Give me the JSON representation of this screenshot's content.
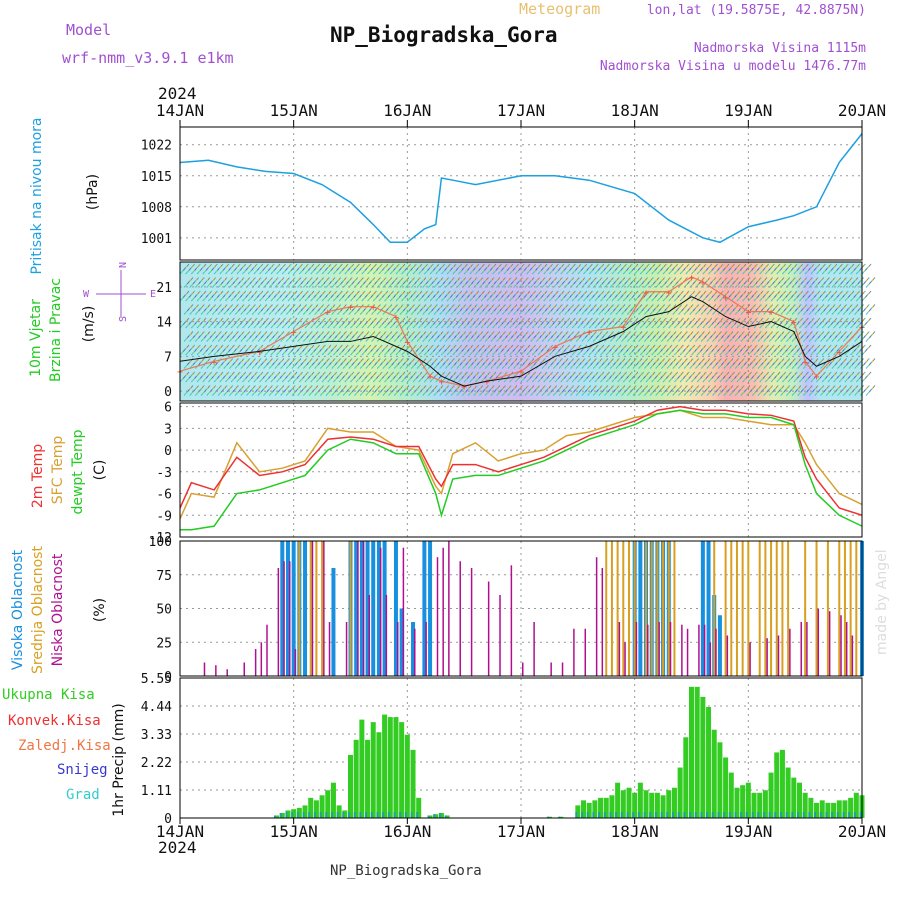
{
  "header": {
    "model_label": "Model",
    "model_name": "wrf-nmm_v3.9.1 e1km",
    "meteogram_label": "Meteogram",
    "station_title": "NP_Biogradska_Gora",
    "lonlat": "lon,lat (19.5875E, 42.8875N)",
    "elevation": "Nadmorska Visina 1115m",
    "model_elevation": "Nadmorska Visina u modelu 1476.77m",
    "footer_station": "NP_Biogradska_Gora",
    "credit": "made by Angel",
    "year": "2024"
  },
  "x_axis": {
    "ticks": [
      "14JAN",
      "15JAN",
      "16JAN",
      "17JAN",
      "18JAN",
      "19JAN",
      "20JAN"
    ],
    "range_days": [
      0,
      6
    ]
  },
  "panel_labels": {
    "pressure": {
      "name": "Pritisak na nivou mora",
      "unit": "(hPa)"
    },
    "wind": {
      "name1": "10m Vjetar",
      "name2": "Brzina i Pravac",
      "unit": "(m/s)",
      "compass_n": "N",
      "compass_s": "S",
      "compass_w": "W",
      "compass_e": "E"
    },
    "temp": {
      "t2m": "2m Temp",
      "sfc": "SFC Temp",
      "dew": "dewpt Temp",
      "unit": "(C)"
    },
    "cloud": {
      "high": "Visoka Oblacnost",
      "mid": "Srednja Oblacnost",
      "low": "Niska Oblacnost",
      "unit": "(%)"
    },
    "precip": {
      "total": "Ukupna Kisa",
      "conv": "Konvek.Kisa",
      "frz": "Zaledj.Kisa",
      "snow": "Snijeg",
      "graupel": "Grad",
      "unit": "1hr Precip (mm)"
    }
  },
  "colors": {
    "pressure": "#1da0e0",
    "t2m": "#ee3030",
    "sfc": "#d8a030",
    "dew": "#22cc22",
    "cloud_high": "#1890e0",
    "cloud_mid": "#d8a020",
    "cloud_low": "#b01090",
    "precip_total": "#33cc22",
    "precip_snow": "#3838d0",
    "precip_graupel": "#20a0a0",
    "model": "#a050d0",
    "meteogram": "#e8c070"
  },
  "chart_data": [
    {
      "type": "line",
      "name": "pressure",
      "ylabel": "Pritisak na nivou mora (hPa)",
      "yticks": [
        1001,
        1008,
        1015,
        1022
      ],
      "ylim": [
        996,
        1026
      ],
      "x": [
        0,
        0.25,
        0.5,
        0.75,
        1,
        1.25,
        1.5,
        1.7,
        1.85,
        2,
        2.15,
        2.25,
        2.3,
        2.4,
        2.6,
        3,
        3.3,
        3.6,
        4,
        4.3,
        4.6,
        4.75,
        5,
        5.25,
        5.4,
        5.6,
        5.8,
        6
      ],
      "y": [
        1018,
        1018.5,
        1017,
        1016,
        1015.5,
        1013,
        1009,
        1004,
        1000,
        1000,
        1003,
        1004,
        1014.5,
        1014,
        1013,
        1015,
        1015,
        1014,
        1011,
        1005,
        1001,
        1000,
        1003.5,
        1005,
        1006,
        1008,
        1018,
        1024.5
      ]
    },
    {
      "type": "line",
      "name": "wind",
      "ylabel": "(m/s)",
      "yticks": [
        0,
        7,
        14,
        21
      ],
      "ylim": [
        -2,
        26
      ],
      "x": [
        0,
        0.3,
        0.7,
        1,
        1.3,
        1.5,
        1.7,
        1.9,
        2,
        2.2,
        2.3,
        2.5,
        2.7,
        3,
        3.3,
        3.6,
        3.9,
        4.1,
        4.3,
        4.5,
        4.6,
        4.8,
        5,
        5.2,
        5.4,
        5.5,
        5.6,
        5.8,
        6
      ],
      "y": [
        6,
        7,
        8,
        9,
        10,
        10,
        11,
        9,
        8,
        5,
        3,
        1,
        2,
        3,
        7,
        9,
        12,
        15,
        16,
        19,
        18,
        15,
        13,
        14,
        12,
        7,
        5,
        7,
        10
      ],
      "gust": [
        4,
        6,
        8,
        12,
        16,
        17,
        17,
        15,
        10,
        3,
        2,
        1,
        2,
        4,
        9,
        12,
        13,
        20,
        20,
        23,
        22,
        19,
        16,
        16,
        14,
        6,
        3,
        8,
        13
      ]
    },
    {
      "type": "line",
      "name": "temperature",
      "ylabel": "(C)",
      "yticks": [
        -12,
        -9,
        -6,
        -3,
        0,
        3,
        6
      ],
      "ylim": [
        -12,
        6.5
      ],
      "x": [
        0,
        0.1,
        0.3,
        0.5,
        0.7,
        0.9,
        1.1,
        1.3,
        1.5,
        1.7,
        1.9,
        2.1,
        2.25,
        2.3,
        2.4,
        2.6,
        2.8,
        3,
        3.2,
        3.4,
        3.6,
        4,
        4.2,
        4.4,
        4.6,
        4.8,
        5,
        5.2,
        5.4,
        5.5,
        5.6,
        5.8,
        6
      ],
      "t2m": [
        -8,
        -4.5,
        -5.5,
        -1,
        -3.5,
        -3,
        -2,
        1.5,
        1.8,
        1.5,
        0.5,
        0.5,
        -4,
        -5,
        -2,
        -2,
        -3,
        -2,
        -1,
        0.5,
        2,
        4,
        5.5,
        6,
        5.5,
        5.5,
        5,
        4.8,
        4,
        -1,
        -4,
        -8,
        -9
      ],
      "sfc": [
        -9.5,
        -6,
        -6.5,
        1,
        -3,
        -2.5,
        -1.5,
        3,
        2.5,
        2.5,
        0.5,
        0,
        -5,
        -6,
        -0.5,
        1,
        -1.5,
        -0.5,
        0,
        2,
        2.5,
        4.5,
        5,
        5.5,
        4.5,
        4.5,
        4,
        3.5,
        3.5,
        1,
        -2,
        -6,
        -7.5
      ],
      "dew": [
        -11,
        -11,
        -10.5,
        -6,
        -5.5,
        -4.5,
        -3.5,
        0,
        1.5,
        1,
        -0.5,
        -0.5,
        -6,
        -9,
        -4,
        -3.5,
        -3.5,
        -2.5,
        -1.5,
        0,
        1.5,
        3.5,
        5,
        5.5,
        5,
        5,
        4.5,
        4.5,
        3.5,
        -2,
        -6,
        -9,
        -10.5
      ]
    },
    {
      "type": "bar",
      "name": "cloud",
      "ylabel": "(%)",
      "yticks": [
        0,
        25,
        50,
        75,
        100
      ],
      "ylim": [
        0,
        100
      ],
      "bars_high": [
        [
          0.9,
          100
        ],
        [
          0.95,
          100
        ],
        [
          1.0,
          100
        ],
        [
          1.05,
          100
        ],
        [
          1.1,
          100
        ],
        [
          1.35,
          80
        ],
        [
          1.5,
          100
        ],
        [
          1.55,
          100
        ],
        [
          1.6,
          100
        ],
        [
          1.65,
          100
        ],
        [
          1.7,
          100
        ],
        [
          1.75,
          100
        ],
        [
          1.8,
          100
        ],
        [
          1.9,
          100
        ],
        [
          1.95,
          50
        ],
        [
          2.05,
          40
        ],
        [
          2.15,
          100
        ],
        [
          2.2,
          100
        ],
        [
          4.0,
          100
        ],
        [
          4.05,
          100
        ],
        [
          4.1,
          100
        ],
        [
          4.15,
          100
        ],
        [
          4.2,
          100
        ],
        [
          4.25,
          100
        ],
        [
          4.3,
          100
        ],
        [
          4.6,
          100
        ],
        [
          4.65,
          100
        ],
        [
          4.7,
          60
        ],
        [
          4.75,
          45
        ],
        [
          6.0,
          100
        ]
      ],
      "bars_mid": [
        [
          1.05,
          100
        ],
        [
          1.15,
          100
        ],
        [
          1.2,
          100
        ],
        [
          1.25,
          100
        ],
        [
          1.5,
          100
        ],
        [
          3.75,
          100
        ],
        [
          3.8,
          100
        ],
        [
          3.85,
          100
        ],
        [
          3.9,
          100
        ],
        [
          3.95,
          100
        ],
        [
          4.0,
          100
        ],
        [
          4.1,
          100
        ],
        [
          4.15,
          100
        ],
        [
          4.2,
          100
        ],
        [
          4.25,
          100
        ],
        [
          4.3,
          100
        ],
        [
          4.35,
          100
        ],
        [
          4.7,
          100
        ],
        [
          4.8,
          100
        ],
        [
          4.85,
          100
        ],
        [
          4.9,
          100
        ],
        [
          4.95,
          100
        ],
        [
          5.0,
          100
        ],
        [
          5.1,
          100
        ],
        [
          5.15,
          100
        ],
        [
          5.2,
          100
        ],
        [
          5.25,
          100
        ],
        [
          5.3,
          100
        ],
        [
          5.35,
          100
        ],
        [
          5.5,
          100
        ],
        [
          5.6,
          100
        ],
        [
          5.7,
          100
        ],
        [
          5.8,
          100
        ],
        [
          5.85,
          100
        ],
        [
          5.9,
          100
        ],
        [
          5.95,
          100
        ]
      ],
      "bars_low": [
        [
          0.2,
          10
        ],
        [
          0.3,
          8
        ],
        [
          0.4,
          5
        ],
        [
          0.55,
          10
        ],
        [
          0.65,
          20
        ],
        [
          0.7,
          25
        ],
        [
          0.75,
          38
        ],
        [
          0.85,
          80
        ],
        [
          0.9,
          85
        ],
        [
          0.95,
          85
        ],
        [
          1.0,
          20
        ],
        [
          1.15,
          100
        ],
        [
          1.25,
          100
        ],
        [
          1.3,
          40
        ],
        [
          1.45,
          40
        ],
        [
          1.55,
          100
        ],
        [
          1.6,
          100
        ],
        [
          1.65,
          60
        ],
        [
          1.75,
          95
        ],
        [
          1.8,
          60
        ],
        [
          1.9,
          40
        ],
        [
          1.95,
          95
        ],
        [
          2.05,
          35
        ],
        [
          2.15,
          40
        ],
        [
          2.25,
          88
        ],
        [
          2.3,
          95
        ],
        [
          2.35,
          100
        ],
        [
          2.45,
          85
        ],
        [
          2.55,
          80
        ],
        [
          2.7,
          70
        ],
        [
          2.8,
          60
        ],
        [
          2.9,
          82
        ],
        [
          3.0,
          10
        ],
        [
          3.1,
          40
        ],
        [
          3.25,
          10
        ],
        [
          3.35,
          10
        ],
        [
          3.45,
          35
        ],
        [
          3.55,
          35
        ],
        [
          3.65,
          88
        ],
        [
          3.7,
          80
        ],
        [
          3.85,
          40
        ],
        [
          3.9,
          25
        ],
        [
          4.0,
          40
        ],
        [
          4.1,
          38
        ],
        [
          4.2,
          40
        ],
        [
          4.3,
          40
        ],
        [
          4.4,
          38
        ],
        [
          4.45,
          35
        ],
        [
          4.55,
          38
        ],
        [
          4.6,
          38
        ],
        [
          4.65,
          25
        ],
        [
          4.7,
          35
        ],
        [
          4.8,
          30
        ],
        [
          5.0,
          25
        ],
        [
          5.15,
          28
        ],
        [
          5.25,
          30
        ],
        [
          5.35,
          35
        ],
        [
          5.45,
          40
        ],
        [
          5.5,
          40
        ],
        [
          5.6,
          50
        ],
        [
          5.7,
          48
        ],
        [
          5.8,
          45
        ],
        [
          5.85,
          40
        ],
        [
          5.9,
          30
        ]
      ]
    },
    {
      "type": "bar",
      "name": "precip",
      "ylabel": "1hr Precip (mm)",
      "yticks": [
        0,
        1.11,
        2.22,
        3.33,
        4.44,
        5.55
      ],
      "ylim": [
        0,
        5.55
      ],
      "bars": [
        [
          0.85,
          0.1
        ],
        [
          0.9,
          0.2
        ],
        [
          0.95,
          0.3
        ],
        [
          1.0,
          0.35
        ],
        [
          1.05,
          0.4
        ],
        [
          1.1,
          0.5
        ],
        [
          1.15,
          0.8
        ],
        [
          1.2,
          0.7
        ],
        [
          1.25,
          0.9
        ],
        [
          1.3,
          1.1
        ],
        [
          1.35,
          1.4
        ],
        [
          1.4,
          0.5
        ],
        [
          1.45,
          0.3
        ],
        [
          1.5,
          2.5
        ],
        [
          1.55,
          3.1
        ],
        [
          1.6,
          3.9
        ],
        [
          1.65,
          3.1
        ],
        [
          1.7,
          3.8
        ],
        [
          1.75,
          3.4
        ],
        [
          1.8,
          4.1
        ],
        [
          1.85,
          4.0
        ],
        [
          1.9,
          4.0
        ],
        [
          1.95,
          3.8
        ],
        [
          2.0,
          3.3
        ],
        [
          2.05,
          2.7
        ],
        [
          2.1,
          0.8
        ],
        [
          2.2,
          0.1
        ],
        [
          2.25,
          0.15
        ],
        [
          2.3,
          0.2
        ],
        [
          2.35,
          0.1
        ],
        [
          3.25,
          0.05
        ],
        [
          3.35,
          0.05
        ],
        [
          3.5,
          0.5
        ],
        [
          3.55,
          0.7
        ],
        [
          3.6,
          0.6
        ],
        [
          3.65,
          0.7
        ],
        [
          3.7,
          0.8
        ],
        [
          3.75,
          0.8
        ],
        [
          3.8,
          0.9
        ],
        [
          3.85,
          1.4
        ],
        [
          3.9,
          1.1
        ],
        [
          3.95,
          1.2
        ],
        [
          4.0,
          1.0
        ],
        [
          4.05,
          1.4
        ],
        [
          4.1,
          1.1
        ],
        [
          4.15,
          1.0
        ],
        [
          4.2,
          1.0
        ],
        [
          4.25,
          0.9
        ],
        [
          4.3,
          1.1
        ],
        [
          4.35,
          1.2
        ],
        [
          4.4,
          2.0
        ],
        [
          4.45,
          3.2
        ],
        [
          4.5,
          5.2
        ],
        [
          4.55,
          5.2
        ],
        [
          4.6,
          4.8
        ],
        [
          4.65,
          4.4
        ],
        [
          4.7,
          3.5
        ],
        [
          4.75,
          3.0
        ],
        [
          4.8,
          2.4
        ],
        [
          4.85,
          1.8
        ],
        [
          4.9,
          1.2
        ],
        [
          4.95,
          1.3
        ],
        [
          5.0,
          1.4
        ],
        [
          5.05,
          1.0
        ],
        [
          5.1,
          1.0
        ],
        [
          5.15,
          1.1
        ],
        [
          5.2,
          1.8
        ],
        [
          5.25,
          2.6
        ],
        [
          5.3,
          2.7
        ],
        [
          5.35,
          2.0
        ],
        [
          5.4,
          1.6
        ],
        [
          5.45,
          1.4
        ],
        [
          5.5,
          1.0
        ],
        [
          5.55,
          0.8
        ],
        [
          5.6,
          0.6
        ],
        [
          5.65,
          0.7
        ],
        [
          5.7,
          0.6
        ],
        [
          5.75,
          0.6
        ],
        [
          5.8,
          0.7
        ],
        [
          5.85,
          0.7
        ],
        [
          5.9,
          0.8
        ],
        [
          5.95,
          1.0
        ],
        [
          6.0,
          0.9
        ],
        [
          5.0,
          0.5
        ]
      ]
    }
  ]
}
